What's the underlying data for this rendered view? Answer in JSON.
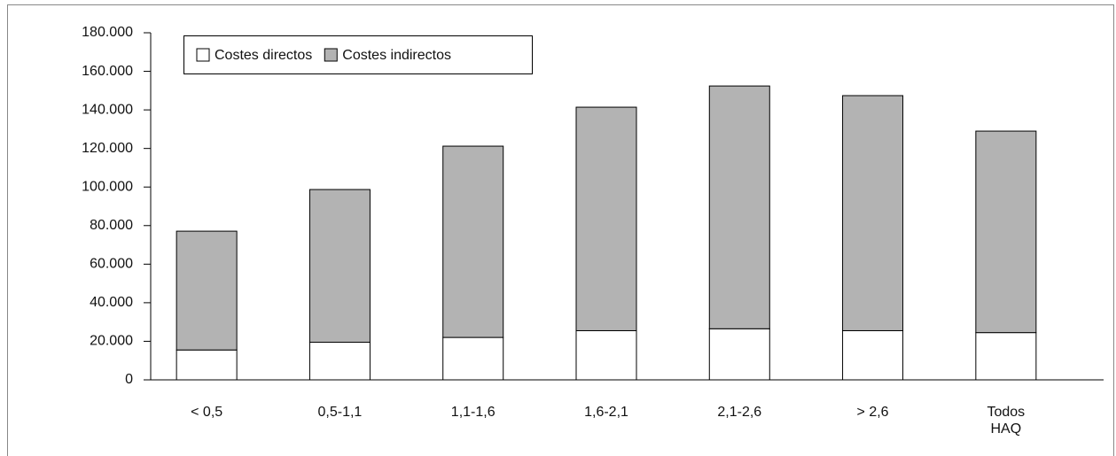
{
  "chart_data": {
    "type": "stacked-bar",
    "categories": [
      "< 0,5",
      "0,5-1,1",
      "1,1-1,6",
      "1,6-2,1",
      "2,1-2,6",
      "> 2,6",
      "Todos HAQ"
    ],
    "series": [
      {
        "name": "Costes directos",
        "color": "#ffffff",
        "values": [
          15500,
          19500,
          22000,
          25500,
          26500,
          25500,
          24500
        ]
      },
      {
        "name": "Costes indirectos",
        "color": "#b3b3b3",
        "values": [
          61600,
          79200,
          99200,
          115900,
          125900,
          121900,
          104500
        ]
      }
    ],
    "ylim": [
      0,
      180000
    ],
    "yticks": [
      0,
      {
        "value": 20000,
        "label": "20.000"
      },
      {
        "value": 40000,
        "label": "40.000"
      },
      {
        "value": 60000,
        "label": "60.000"
      },
      {
        "value": 80000,
        "label": "80.000"
      },
      {
        "value": 100000,
        "label": "100.000"
      },
      {
        "value": 120000,
        "label": "120.000"
      },
      {
        "value": 140000,
        "label": "140.000"
      },
      {
        "value": 160000,
        "label": "160.000"
      },
      {
        "value": 180000,
        "label": "180.000"
      }
    ],
    "legend": "top-left"
  }
}
